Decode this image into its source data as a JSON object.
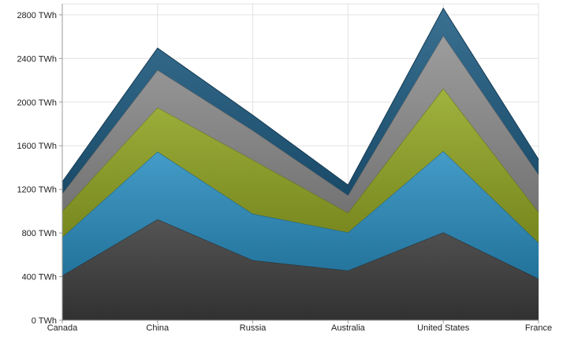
{
  "chart_data": {
    "type": "area",
    "stacked": true,
    "categories": [
      "Canada",
      "China",
      "Russia",
      "Australia",
      "United States",
      "France"
    ],
    "y_tick_labels": [
      "0 TWh",
      "400 TWh",
      "800 TWh",
      "1200 TWh",
      "1600 TWh",
      "2000 TWh",
      "2400 TWh",
      "2800 TWh"
    ],
    "y_ticks": [
      0,
      400,
      800,
      1200,
      1600,
      2000,
      2400,
      2800
    ],
    "ylim": [
      0,
      2900
    ],
    "grid": true,
    "series": [
      {
        "values": [
          410,
          925,
          550,
          455,
          805,
          380
        ],
        "color": "#3d3d3d"
      },
      {
        "values": [
          350,
          620,
          425,
          350,
          745,
          330
        ],
        "color": "#2b8fc0"
      },
      {
        "values": [
          240,
          405,
          495,
          180,
          575,
          280
        ],
        "color": "#93a824"
      },
      {
        "values": [
          160,
          345,
          270,
          160,
          485,
          345
        ],
        "color": "#909090"
      },
      {
        "values": [
          110,
          200,
          140,
          95,
          250,
          140
        ],
        "color": "#1f5c82"
      }
    ]
  }
}
